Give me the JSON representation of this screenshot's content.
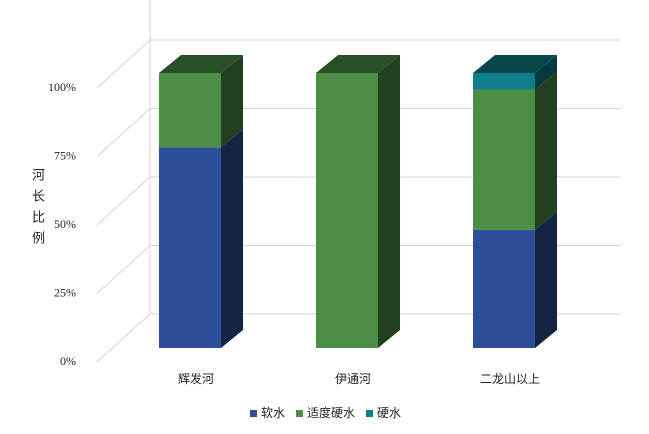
{
  "chart_data": {
    "type": "stacked-bar-3d",
    "y_label": "河长比例",
    "categories": [
      "辉发河",
      "伊通河",
      "二龙山以上"
    ],
    "series": [
      {
        "name": "软水",
        "color": "#2f4e9a",
        "values": [
          73,
          0,
          43
        ]
      },
      {
        "name": "适度硬水",
        "color": "#4a8f45",
        "values": [
          27,
          100,
          51
        ]
      },
      {
        "name": "硬水",
        "color": "#0e7f8a",
        "values": [
          0,
          0,
          6
        ]
      }
    ],
    "ylim": [
      0,
      100
    ],
    "yticks": [
      {
        "value": 0,
        "label": "0%"
      },
      {
        "value": 25,
        "label": "25%"
      },
      {
        "value": 50,
        "label": "50%"
      },
      {
        "value": 75,
        "label": "75%"
      },
      {
        "value": 100,
        "label": "100%"
      }
    ],
    "grid": true,
    "legend": "bottom"
  }
}
